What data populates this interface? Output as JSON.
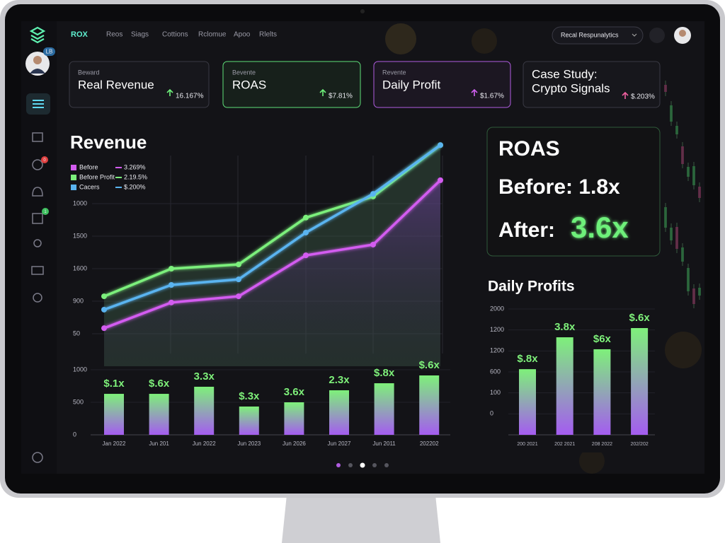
{
  "nav": {
    "logo": "ROX",
    "items": [
      "Reos",
      "Siags",
      "Cottions",
      "Rclomue",
      "Apoo",
      "Rlelts"
    ]
  },
  "header": {
    "dropdown": "Recal Respunalytics"
  },
  "sidebar": {
    "avatar_badge": "LB",
    "badges": [
      "0",
      "1"
    ]
  },
  "cards": [
    {
      "label": "Beward",
      "title": "Real Revenue",
      "change": "16.167%"
    },
    {
      "label": "Bevente",
      "title": "ROAS",
      "change": "$7.81%"
    },
    {
      "label": "Revente",
      "title": "Daily Profit",
      "change": "$1.67%"
    },
    {
      "title_lines": [
        "Case Study:",
        "Crypto Signals"
      ],
      "change": "$.203%"
    }
  ],
  "revenue_chart": {
    "title": "Revenue",
    "legend_values": [
      "3.269%",
      "2.19.5%",
      "$.200%"
    ],
    "categories": [
      null,
      null,
      null,
      null,
      null,
      null
    ],
    "series": [
      {
        "name": "Before",
        "color": "#d35cf0",
        "values": [
          1.17,
          1.96,
          2.15,
          3.41,
          3.74,
          5.72
        ]
      },
      {
        "name": "Before Profit",
        "color": "#7cf07c",
        "values": [
          2.15,
          3.0,
          3.13,
          4.57,
          5.22,
          6.8
        ]
      },
      {
        "name": "Cacers",
        "color": "#5ab4f0",
        "values": [
          1.74,
          2.5,
          2.67,
          4.11,
          5.3,
          6.8
        ]
      }
    ],
    "ylim": [
      0,
      7
    ],
    "yticks": [
      {
        "value": 5,
        "label": "1000"
      },
      {
        "value": 4,
        "label": "1500"
      },
      {
        "value": 3,
        "label": "1600"
      },
      {
        "value": 2,
        "label": "900"
      },
      {
        "value": 1,
        "label": "50"
      }
    ]
  },
  "bar_chart": {
    "categories": [
      "Jan 2022",
      "Jun 201",
      "Jun 2022",
      "Jun 2023",
      "Jun 2026",
      "Jun 2027",
      "Jun 2011",
      "202202"
    ],
    "values": [
      630,
      630,
      739,
      435,
      500,
      685,
      793,
      913
    ],
    "bar_labels": [
      "$.1x",
      "$.6x",
      "3.3x",
      "$.3x",
      "3.6x",
      "2.3x",
      "$.8x",
      "$.6x"
    ],
    "ylim": [
      0,
      1000
    ],
    "yticks": [
      0,
      500,
      1000
    ]
  },
  "roas_panel": {
    "title": "ROAS",
    "before": "Before: 1.8x",
    "after_label": "After:",
    "after": "3.6x"
  },
  "daily_profits": {
    "title": "Daily Profits",
    "categories": [
      "200 2021",
      "202 2021",
      "208 2022",
      "202/202"
    ],
    "values": [
      3.13,
      4.65,
      4.08,
      5.09
    ],
    "bar_labels": [
      "$.8x",
      "3.8x",
      "$6x",
      "$.6x"
    ],
    "ylim": [
      0,
      6
    ],
    "yticks": [
      {
        "value": 6,
        "label": "2000"
      },
      {
        "value": 5,
        "label": "1200"
      },
      {
        "value": 4,
        "label": "1200"
      },
      {
        "value": 3,
        "label": "600"
      },
      {
        "value": 2,
        "label": "100"
      },
      {
        "value": 1,
        "label": "0"
      }
    ]
  }
}
